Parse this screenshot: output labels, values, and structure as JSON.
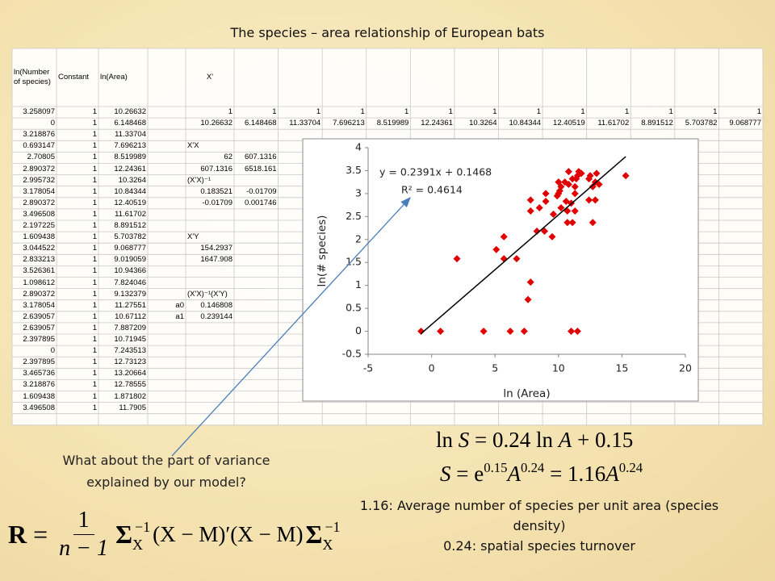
{
  "title": "The species – area relationship of European bats",
  "table": {
    "rows": [
      [
        "ln(Number of species)",
        "Constant",
        "ln(Area)",
        null,
        "X'"
      ],
      [
        3.258097,
        1,
        10.26632,
        null,
        1,
        1,
        1,
        1,
        1,
        1,
        1,
        1,
        1,
        1,
        1,
        1,
        1
      ],
      [
        0,
        1,
        6.148468,
        null,
        10.26632,
        6.148468,
        11.33704,
        7.696213,
        8.519989,
        12.24361,
        10.3264,
        10.84344,
        12.40519,
        11.61702,
        8.891512,
        5.703782,
        9.068777
      ],
      [
        3.218876,
        1,
        11.33704
      ],
      [
        0.693147,
        1,
        7.696213,
        null,
        "X'X"
      ],
      [
        2.70805,
        1,
        8.519989,
        null,
        62,
        607.1316
      ],
      [
        2.890372,
        1,
        12.24361,
        null,
        607.1316,
        6518.161
      ],
      [
        2.995732,
        1,
        10.3264,
        null,
        "(X'X)⁻¹"
      ],
      [
        3.178054,
        1,
        10.84344,
        null,
        0.183521,
        -0.01709
      ],
      [
        2.890372,
        1,
        12.40519,
        null,
        -0.01709,
        0.001746
      ],
      [
        3.496508,
        1,
        11.61702
      ],
      [
        2.197225,
        1,
        8.891512
      ],
      [
        1.609438,
        1,
        5.703782,
        null,
        "X'Y"
      ],
      [
        3.044522,
        1,
        9.068777,
        null,
        154.2937
      ],
      [
        2.833213,
        1,
        9.019059,
        null,
        1647.908
      ],
      [
        3.526361,
        1,
        10.94366
      ],
      [
        1.098612,
        1,
        7.824046
      ],
      [
        2.890372,
        1,
        9.132379,
        null,
        "(X'X)⁻¹(X'Y)"
      ],
      [
        3.178054,
        1,
        11.27551,
        "a0",
        0.146808
      ],
      [
        2.639057,
        1,
        10.67112,
        "a1",
        0.239144
      ],
      [
        2.639057,
        1,
        7.887209
      ],
      [
        2.397895,
        1,
        10.71945
      ],
      [
        0,
        1,
        7.243513
      ],
      [
        2.397895,
        1,
        12.73123
      ],
      [
        3.465736,
        1,
        13.20664
      ],
      [
        3.218876,
        1,
        12.78555
      ],
      [
        1.609438,
        1,
        1.871802
      ],
      [
        3.496508,
        1,
        11.7905
      ]
    ]
  },
  "chart_data": {
    "type": "scatter",
    "x": [
      -0.83,
      0.7,
      4.1,
      6.2,
      7.3,
      11.0,
      11.5,
      2.0,
      5.1,
      5.7,
      5.7,
      6.7,
      7.6,
      7.8,
      7.8,
      7.8,
      8.3,
      8.5,
      8.9,
      9.0,
      9.0,
      9.5,
      9.6,
      9.9,
      10.0,
      10.0,
      10.1,
      10.2,
      10.2,
      10.5,
      10.6,
      10.7,
      10.7,
      10.8,
      10.8,
      11.0,
      11.1,
      11.1,
      11.3,
      11.3,
      11.3,
      11.4,
      11.5,
      11.6,
      11.8,
      12.4,
      12.4,
      12.5,
      12.7,
      12.7,
      12.9,
      12.9,
      13.0,
      13.2,
      15.3
    ],
    "values": [
      0,
      0,
      0,
      0,
      0,
      0,
      0,
      1.58,
      1.78,
      2.06,
      1.58,
      1.58,
      0.69,
      1.07,
      2.86,
      2.62,
      2.18,
      2.69,
      2.18,
      3.0,
      2.83,
      2.06,
      2.55,
      2.95,
      3.25,
      3.0,
      3.06,
      3.15,
      2.69,
      3.25,
      2.83,
      2.37,
      2.62,
      3.2,
      3.48,
      2.79,
      3.32,
      2.37,
      3.15,
      3.0,
      2.62,
      3.32,
      3.39,
      3.48,
      3.44,
      3.32,
      2.86,
      3.39,
      3.15,
      2.37,
      3.25,
      2.86,
      3.44,
      3.2,
      3.39
    ],
    "color": "#e00000",
    "xlim": [
      -5,
      20
    ],
    "xticks": [
      -5,
      0,
      5,
      10,
      15,
      20
    ],
    "ylim": [
      -0.5,
      4
    ],
    "yticks": [
      -0.5,
      0,
      0.5,
      1,
      1.5,
      2,
      2.5,
      3,
      3.5,
      4
    ],
    "xlabel": "ln (Area)",
    "ylabel": "ln(# species)",
    "trendline": {
      "slope": 0.2391,
      "intercept": 0.1468,
      "color": "#000000",
      "equation": "y = 0.2391x + 0.1468",
      "r2_label": "R² = 0.4614"
    }
  },
  "question": "What about the part of variance explained by our model?",
  "equations": {
    "log_form": [
      "ln",
      "S",
      "= 0.24 ln",
      "A",
      "+ 0.15"
    ],
    "power_form": [
      "S",
      "= e",
      "0.15",
      "A",
      "0.24",
      "= 1.16",
      "A",
      "0.24"
    ],
    "covariance": [
      "R",
      "=",
      "1",
      "n − 1",
      "Σ",
      "X",
      "−1",
      "(X − M)′(X − M)",
      "Σ",
      "X",
      "−1"
    ]
  },
  "notes": [
    "1.16: Average number of species per unit area (species density)",
    "0.24: spatial species turnover"
  ]
}
